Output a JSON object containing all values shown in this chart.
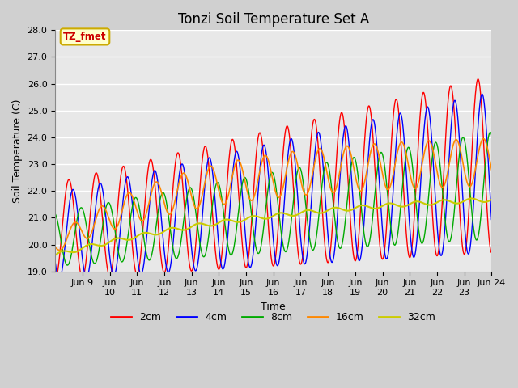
{
  "title": "Tonzi Soil Temperature Set A",
  "xlabel": "Time",
  "ylabel": "Soil Temperature (C)",
  "ylim": [
    19.0,
    28.0
  ],
  "yticks": [
    19.0,
    20.0,
    21.0,
    22.0,
    23.0,
    24.0,
    25.0,
    26.0,
    27.0,
    28.0
  ],
  "annotation_text": "TZ_fmet",
  "annotation_color": "#cc0000",
  "annotation_bg": "#ffffcc",
  "annotation_border": "#ccaa00",
  "line_colors": {
    "2cm": "#ff0000",
    "4cm": "#0000ff",
    "8cm": "#00aa00",
    "16cm": "#ff8800",
    "32cm": "#cccc00"
  },
  "legend_labels": [
    "2cm",
    "4cm",
    "8cm",
    "16cm",
    "32cm"
  ],
  "fig_bg": "#d0d0d0",
  "plot_bg": "#e8e8e8",
  "grid_color": "#ffffff",
  "title_fontsize": 12,
  "axis_label_fontsize": 9,
  "tick_label_fontsize": 8
}
